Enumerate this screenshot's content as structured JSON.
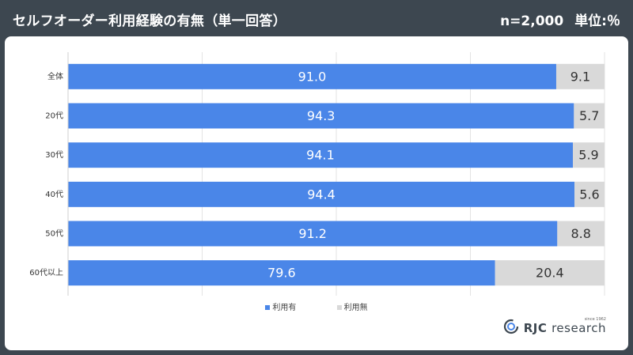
{
  "header": {
    "title": "セルフオーダー利用経験の有無（単一回答）",
    "sample": "n=2,000",
    "unit": "単位:％"
  },
  "colors": {
    "series1": "#4a86e8",
    "series2": "#d9d9d9",
    "header_bg": "#3d4750",
    "label_on_bar": "#ffffff",
    "label_on_gray": "#333333"
  },
  "brand": {
    "since": "since 1962",
    "name_bold": "RJC",
    "name_light": "research",
    "logo_icon": "rjc-logo-icon"
  },
  "chart_data": {
    "type": "bar",
    "orientation": "horizontal",
    "stacked": true,
    "categories": [
      "全体",
      "20代",
      "30代",
      "40代",
      "50代",
      "60代以上"
    ],
    "series": [
      {
        "name": "利用有",
        "values": [
          91.0,
          94.3,
          94.1,
          94.4,
          91.2,
          79.6
        ]
      },
      {
        "name": "利用無",
        "values": [
          9.1,
          5.7,
          5.9,
          5.6,
          8.8,
          20.4
        ]
      }
    ],
    "data_labels": [
      [
        "91.0",
        "94.3",
        "94.1",
        "94.4",
        "91.2",
        "79.6"
      ],
      [
        "9.1",
        "5.7",
        "5.9",
        "5.6",
        "8.8",
        "20.4"
      ]
    ],
    "xlim": [
      0,
      100
    ],
    "grid": true,
    "legend": "bottom"
  }
}
